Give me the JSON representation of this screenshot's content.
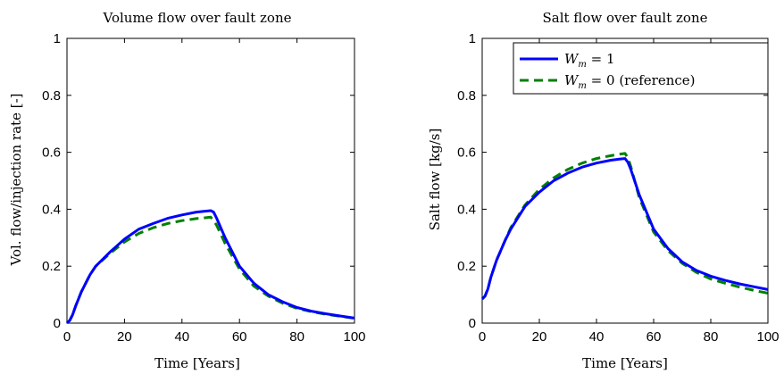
{
  "chart_data": [
    {
      "type": "line",
      "title": "Volume flow over fault zone",
      "xlabel": "Time [Years]",
      "ylabel": "Vol. flow/injection rate [-]",
      "xlim": [
        0,
        100
      ],
      "ylim": [
        0,
        1
      ],
      "xticks": [
        "0",
        "20",
        "40",
        "60",
        "80",
        "100"
      ],
      "yticks": [
        "0",
        "0.2",
        "0.4",
        "0.6",
        "0.8",
        "1"
      ],
      "grid": false,
      "series": [
        {
          "color": "#0000ff",
          "style": "solid",
          "x": [
            0,
            1,
            2,
            3,
            5,
            8,
            10,
            15,
            20,
            25,
            30,
            35,
            40,
            45,
            48,
            50,
            51,
            52,
            55,
            60,
            65,
            70,
            75,
            80,
            85,
            90,
            95,
            100
          ],
          "y": [
            0.0,
            0.01,
            0.03,
            0.06,
            0.11,
            0.17,
            0.2,
            0.25,
            0.295,
            0.33,
            0.35,
            0.368,
            0.38,
            0.39,
            0.393,
            0.395,
            0.39,
            0.37,
            0.3,
            0.2,
            0.14,
            0.1,
            0.075,
            0.055,
            0.042,
            0.033,
            0.025,
            0.018
          ]
        },
        {
          "color": "#008000",
          "style": "dashed",
          "x": [
            0,
            1,
            2,
            3,
            5,
            8,
            10,
            15,
            20,
            25,
            30,
            35,
            40,
            45,
            48,
            50,
            51,
            52,
            55,
            60,
            65,
            70,
            75,
            80,
            85,
            90,
            95,
            100
          ],
          "y": [
            0.0,
            0.01,
            0.03,
            0.06,
            0.11,
            0.17,
            0.2,
            0.245,
            0.285,
            0.315,
            0.335,
            0.35,
            0.36,
            0.367,
            0.37,
            0.372,
            0.36,
            0.345,
            0.28,
            0.19,
            0.13,
            0.095,
            0.07,
            0.052,
            0.04,
            0.031,
            0.024,
            0.017
          ]
        }
      ]
    },
    {
      "type": "line",
      "title": "Salt flow over fault zone",
      "xlabel": "Time [Years]",
      "ylabel": "Salt flow [kg/s]",
      "xlim": [
        0,
        100
      ],
      "ylim": [
        0,
        1
      ],
      "xticks": [
        "0",
        "20",
        "40",
        "60",
        "80",
        "100"
      ],
      "yticks": [
        "0",
        "0.2",
        "0.4",
        "0.6",
        "0.8",
        "1"
      ],
      "grid": false,
      "legend": "top-right",
      "series": [
        {
          "name_math": "W",
          "name_sub": "m",
          "name_rest": " = 1",
          "color": "#0000ff",
          "style": "solid",
          "x": [
            0,
            1,
            2,
            3,
            5,
            8,
            10,
            15,
            20,
            25,
            30,
            35,
            40,
            45,
            48,
            50,
            51,
            52,
            55,
            60,
            65,
            70,
            75,
            80,
            85,
            90,
            95,
            100
          ],
          "y": [
            0.085,
            0.095,
            0.12,
            0.16,
            0.22,
            0.29,
            0.33,
            0.41,
            0.46,
            0.5,
            0.527,
            0.548,
            0.562,
            0.572,
            0.576,
            0.578,
            0.565,
            0.54,
            0.45,
            0.33,
            0.262,
            0.215,
            0.185,
            0.165,
            0.15,
            0.138,
            0.128,
            0.118
          ]
        },
        {
          "name_math": "W",
          "name_sub": "m",
          "name_rest": " = 0 (reference)",
          "color": "#008000",
          "style": "dashed",
          "x": [
            0,
            1,
            2,
            3,
            5,
            8,
            10,
            15,
            20,
            25,
            30,
            35,
            40,
            45,
            48,
            50,
            51,
            52,
            55,
            60,
            65,
            70,
            75,
            80,
            85,
            90,
            95,
            100
          ],
          "y": [
            0.085,
            0.095,
            0.12,
            0.16,
            0.22,
            0.29,
            0.335,
            0.415,
            0.47,
            0.51,
            0.54,
            0.562,
            0.578,
            0.588,
            0.593,
            0.596,
            0.58,
            0.55,
            0.44,
            0.32,
            0.255,
            0.21,
            0.178,
            0.155,
            0.14,
            0.127,
            0.115,
            0.105
          ]
        }
      ]
    }
  ]
}
